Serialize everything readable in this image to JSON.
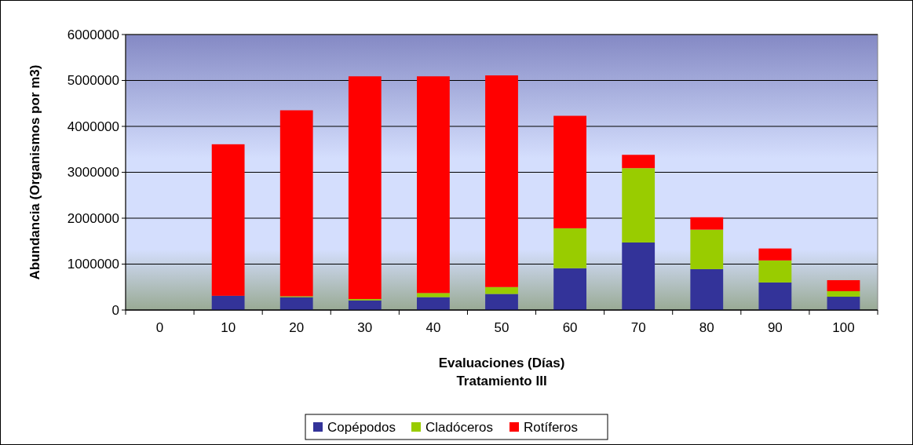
{
  "chart_data": {
    "type": "bar",
    "stacked": true,
    "title": "Tratamiento III",
    "xlabel": "Evaluaciones (Días)",
    "ylabel": "Abundancia (Organismos por m3)",
    "categories": [
      "0",
      "10",
      "20",
      "30",
      "40",
      "50",
      "60",
      "70",
      "80",
      "90",
      "100"
    ],
    "series": [
      {
        "name": "Copépodos",
        "color": "#333399",
        "values": [
          0,
          310000,
          280000,
          210000,
          280000,
          350000,
          910000,
          1470000,
          890000,
          600000,
          290000
        ]
      },
      {
        "name": "Cladóceros",
        "color": "#99cc00",
        "values": [
          0,
          0,
          20000,
          30000,
          90000,
          150000,
          870000,
          1620000,
          860000,
          480000,
          120000
        ]
      },
      {
        "name": "Rotíferos",
        "color": "#ff0000",
        "values": [
          0,
          3300000,
          4050000,
          4850000,
          4720000,
          4610000,
          2450000,
          290000,
          270000,
          260000,
          240000
        ]
      }
    ],
    "ylim": [
      0,
      6000000
    ],
    "yticks": [
      0,
      1000000,
      2000000,
      3000000,
      4000000,
      5000000,
      6000000
    ],
    "grid": "y",
    "legend": "bottom"
  }
}
